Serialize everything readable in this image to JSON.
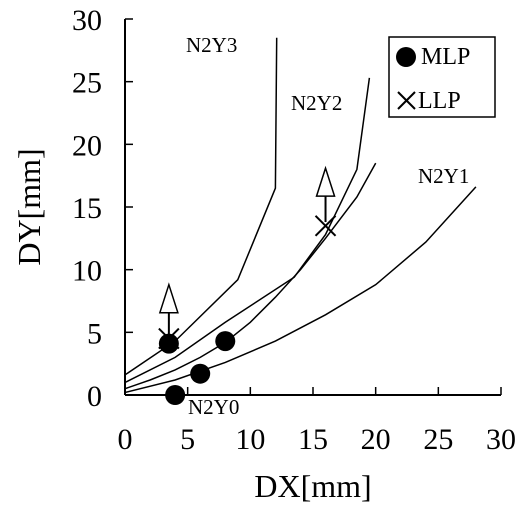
{
  "chart_data": {
    "type": "scatter",
    "xlabel": "DX[mm]",
    "ylabel": "DY[mm]",
    "xlim": [
      0,
      30
    ],
    "ylim": [
      0,
      30
    ],
    "x_ticks": [
      "0",
      "5",
      "10",
      "15",
      "20",
      "25",
      "30"
    ],
    "y_ticks": [
      "0",
      "5",
      "10",
      "15",
      "20",
      "25",
      "30"
    ],
    "grid": false,
    "legend_position": "top-right",
    "legend": [
      {
        "label": "MLP",
        "marker": "filled-circle"
      },
      {
        "label": "LLP",
        "marker": "cross"
      }
    ],
    "curves": [
      {
        "label": "N2Y0",
        "points": [
          [
            0,
            0.5
          ],
          [
            2,
            1.2
          ],
          [
            4,
            2.0
          ],
          [
            6,
            3.0
          ],
          [
            8,
            4.2
          ],
          [
            10,
            5.8
          ],
          [
            12,
            7.8
          ],
          [
            14,
            10.0
          ],
          [
            16,
            12.5
          ],
          [
            18.5,
            15.8
          ],
          [
            20,
            18.5
          ]
        ]
      },
      {
        "label": "N2Y1",
        "points": [
          [
            0,
            0.2
          ],
          [
            4,
            1.2
          ],
          [
            8,
            2.6
          ],
          [
            12,
            4.3
          ],
          [
            16,
            6.4
          ],
          [
            20,
            8.8
          ],
          [
            24,
            12.2
          ],
          [
            28,
            16.6
          ]
        ]
      },
      {
        "label": "N2Y2",
        "points": [
          [
            0,
            1.0
          ],
          [
            4,
            3.0
          ],
          [
            8,
            5.8
          ],
          [
            13.5,
            9.4
          ],
          [
            16,
            12.8
          ],
          [
            18.5,
            18.0
          ],
          [
            19.5,
            25.3
          ]
        ]
      },
      {
        "label": "N2Y3",
        "points": [
          [
            0,
            1.6
          ],
          [
            4,
            4.3
          ],
          [
            9,
            9.2
          ],
          [
            12,
            16.5
          ],
          [
            12.1,
            28.5
          ]
        ]
      }
    ],
    "mlp_points": [
      [
        3.5,
        4.1
      ],
      [
        4,
        0
      ],
      [
        6,
        1.7
      ],
      [
        8,
        4.3
      ]
    ],
    "llp_points": [
      [
        3.5,
        4.5
      ],
      [
        16,
        13.5
      ]
    ],
    "arrows": [
      {
        "x": 3.5,
        "y_from": 4.5,
        "y_to": 8.8
      },
      {
        "x": 16,
        "y_from": 13.8,
        "y_to": 18.1
      }
    ]
  }
}
